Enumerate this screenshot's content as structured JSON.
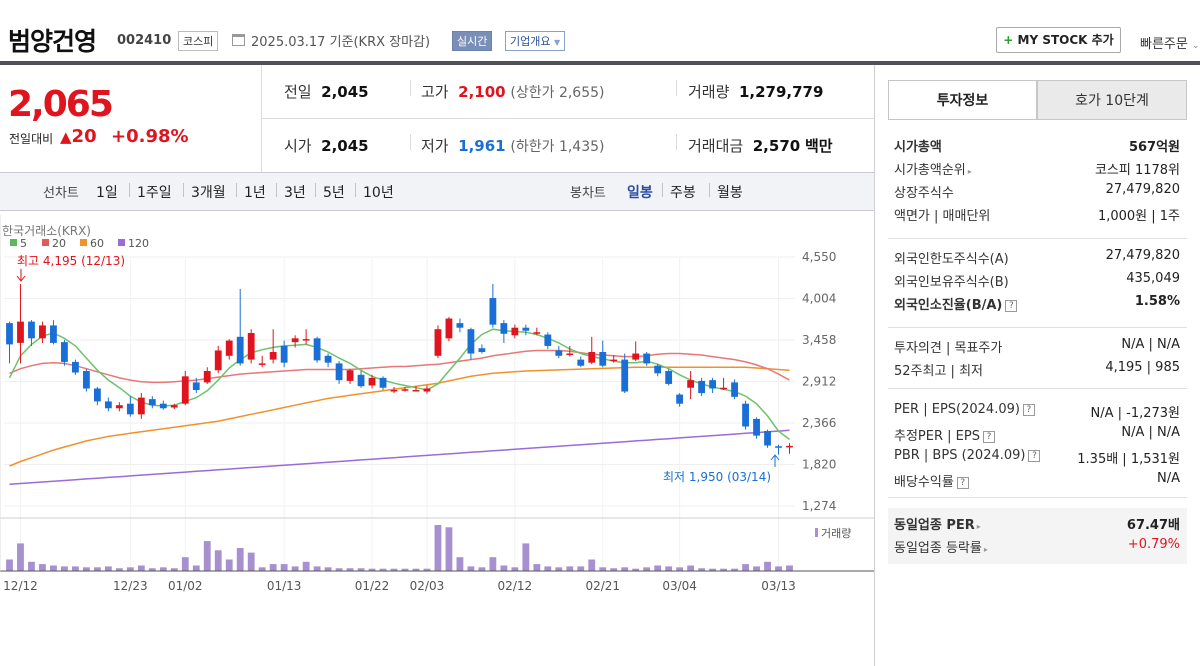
{
  "header": {
    "company": "범양건영",
    "code": "002410",
    "market": "코스피",
    "date": "2025.03.17 기준(KRX 장마감)",
    "realtime": "실시간",
    "corp_info": "기업개요",
    "mystock": "MY STOCK 추가",
    "quick_order": "빠른주문"
  },
  "quote": {
    "price": "2,065",
    "change_label": "전일대비",
    "change": "20",
    "change_pct": "+0.98%",
    "prev_label": "전일",
    "prev": "2,045",
    "open_label": "시가",
    "open": "2,045",
    "high_label": "고가",
    "high": "2,100",
    "upper_limit": "(상한가 2,655)",
    "low_label": "저가",
    "low": "1,961",
    "lower_limit": "(하한가 1,435)",
    "volume_label": "거래량",
    "volume": "1,279,779",
    "amount_label": "거래대금",
    "amount": "2,570",
    "amount_unit": "백만"
  },
  "periods": {
    "line_label": "선차트",
    "line_items": [
      "1일",
      "1주일",
      "3개월",
      "1년",
      "3년",
      "5년",
      "10년"
    ],
    "candle_label": "봉차트",
    "candle_items": [
      "일봉",
      "주봉",
      "월봉"
    ],
    "candle_selected": "일봉"
  },
  "chart_data": {
    "type": "candlestick",
    "source": "한국거래소(KRX)",
    "legend": [
      {
        "name": "5",
        "color": "#5cb85c"
      },
      {
        "name": "20",
        "color": "#e05a5a"
      },
      {
        "name": "60",
        "color": "#f0922b"
      },
      {
        "name": "120",
        "color": "#9b6bd6"
      }
    ],
    "y_ticks": [
      4550,
      4004,
      3458,
      2912,
      2366,
      1820,
      1274
    ],
    "ylim": [
      1274,
      4550
    ],
    "x_ticks": [
      "12/12",
      "12/23",
      "01/02",
      "01/13",
      "01/22",
      "02/03",
      "02/12",
      "02/21",
      "03/04",
      "03/13"
    ],
    "max_label": "최고 4,195 (12/13)",
    "min_label": "최저 1,950 (03/14)",
    "volume_label": "거래량",
    "candles": [
      [
        3680,
        3400,
        3700,
        3150
      ],
      [
        3420,
        3700,
        4195,
        3150
      ],
      [
        3700,
        3480,
        3720,
        3380
      ],
      [
        3480,
        3650,
        3700,
        3420
      ],
      [
        3650,
        3420,
        3720,
        3400
      ],
      [
        3430,
        3170,
        3460,
        3120
      ],
      [
        3170,
        3030,
        3200,
        3000
      ],
      [
        3050,
        2820,
        3080,
        2780
      ],
      [
        2820,
        2650,
        2840,
        2600
      ],
      [
        2650,
        2560,
        2700,
        2520
      ],
      [
        2560,
        2600,
        2640,
        2520
      ],
      [
        2620,
        2480,
        2720,
        2450
      ],
      [
        2480,
        2700,
        2760,
        2420
      ],
      [
        2680,
        2600,
        2720,
        2560
      ],
      [
        2620,
        2560,
        2660,
        2540
      ],
      [
        2570,
        2600,
        2620,
        2550
      ],
      [
        2620,
        2980,
        3050,
        2600
      ],
      [
        2900,
        2800,
        2960,
        2760
      ],
      [
        2900,
        3050,
        3100,
        2880
      ],
      [
        3060,
        3320,
        3380,
        3020
      ],
      [
        3250,
        3450,
        3470,
        3200
      ],
      [
        3500,
        3150,
        4130,
        3120
      ],
      [
        3200,
        3550,
        3600,
        3150
      ],
      [
        3150,
        3150,
        3250,
        3100
      ],
      [
        3200,
        3300,
        3600,
        3150
      ],
      [
        3380,
        3160,
        3450,
        3100
      ],
      [
        3430,
        3480,
        3520,
        3360
      ],
      [
        3470,
        3470,
        3600,
        3400
      ],
      [
        3480,
        3190,
        3500,
        3160
      ],
      [
        3250,
        3160,
        3280,
        3100
      ],
      [
        3150,
        2930,
        3180,
        2880
      ],
      [
        2920,
        3060,
        3080,
        2880
      ],
      [
        3000,
        2850,
        3050,
        2830
      ],
      [
        2860,
        2960,
        3000,
        2820
      ],
      [
        2960,
        2830,
        2980,
        2800
      ],
      [
        2800,
        2800,
        2840,
        2760
      ],
      [
        2800,
        2810,
        2840,
        2780
      ],
      [
        2800,
        2800,
        2850,
        2780
      ],
      [
        2780,
        2820,
        2860,
        2750
      ],
      [
        3250,
        3600,
        3650,
        3220
      ],
      [
        3480,
        3740,
        3760,
        3440
      ],
      [
        3680,
        3620,
        3740,
        3560
      ],
      [
        3600,
        3280,
        3620,
        3200
      ],
      [
        3350,
        3300,
        3400,
        3280
      ],
      [
        4010,
        3660,
        4195,
        3620
      ],
      [
        3680,
        3540,
        3720,
        3420
      ],
      [
        3520,
        3620,
        3660,
        3480
      ],
      [
        3620,
        3580,
        3660,
        3520
      ],
      [
        3560,
        3560,
        3620,
        3520
      ],
      [
        3530,
        3380,
        3560,
        3340
      ],
      [
        3320,
        3250,
        3380,
        3220
      ],
      [
        3280,
        3280,
        3380,
        3240
      ],
      [
        3200,
        3120,
        3240,
        3100
      ],
      [
        3160,
        3300,
        3500,
        3140
      ],
      [
        3300,
        3120,
        3450,
        3100
      ],
      [
        3200,
        3200,
        3260,
        3160
      ],
      [
        3200,
        2780,
        3280,
        2760
      ],
      [
        3200,
        3280,
        3440,
        3180
      ],
      [
        3280,
        3150,
        3300,
        3120
      ],
      [
        3120,
        3020,
        3140,
        2980
      ],
      [
        3050,
        2880,
        3070,
        2860
      ],
      [
        2740,
        2620,
        2760,
        2580
      ],
      [
        2830,
        2930,
        3050,
        2680
      ],
      [
        2920,
        2760,
        2960,
        2720
      ],
      [
        2930,
        2820,
        2960,
        2760
      ],
      [
        2820,
        2830,
        2960,
        2800
      ],
      [
        2900,
        2710,
        2940,
        2680
      ],
      [
        2620,
        2320,
        2660,
        2280
      ],
      [
        2420,
        2200,
        2440,
        2160
      ],
      [
        2260,
        2070,
        2280,
        2040
      ],
      [
        2060,
        2040,
        2080,
        1950
      ],
      [
        2045,
        2065,
        2100,
        1961
      ]
    ],
    "ma5": [
      2960,
      3250,
      3400,
      3510,
      3550,
      3480,
      3380,
      3220,
      3060,
      2930,
      2830,
      2720,
      2640,
      2600,
      2590,
      2600,
      2650,
      2700,
      2790,
      2930,
      3090,
      3200,
      3290,
      3330,
      3360,
      3380,
      3390,
      3400,
      3360,
      3300,
      3220,
      3150,
      3060,
      2980,
      2930,
      2890,
      2860,
      2830,
      2800,
      2880,
      3050,
      3220,
      3400,
      3530,
      3600,
      3580,
      3570,
      3560,
      3530,
      3480,
      3420,
      3340,
      3280,
      3240,
      3210,
      3180,
      3160,
      3160,
      3180,
      3140,
      3080,
      3000,
      2930,
      2880,
      2840,
      2810,
      2780,
      2720,
      2620,
      2460,
      2260,
      2150
    ],
    "ma20": [
      3020,
      3080,
      3120,
      3150,
      3160,
      3150,
      3120,
      3080,
      3040,
      3000,
      2960,
      2930,
      2910,
      2900,
      2900,
      2910,
      2920,
      2930,
      2950,
      2970,
      2990,
      3010,
      3020,
      3030,
      3040,
      3050,
      3060,
      3070,
      3070,
      3070,
      3070,
      3070,
      3080,
      3090,
      3100,
      3110,
      3110,
      3120,
      3130,
      3140,
      3160,
      3180,
      3200,
      3220,
      3250,
      3270,
      3290,
      3310,
      3320,
      3320,
      3320,
      3310,
      3290,
      3270,
      3260,
      3250,
      3240,
      3240,
      3250,
      3270,
      3280,
      3280,
      3270,
      3260,
      3240,
      3220,
      3200,
      3170,
      3130,
      3080,
      3010,
      2930
    ],
    "ma60": [
      1800,
      1860,
      1910,
      1960,
      2010,
      2050,
      2090,
      2130,
      2160,
      2190,
      2210,
      2230,
      2250,
      2270,
      2290,
      2310,
      2330,
      2350,
      2370,
      2390,
      2420,
      2450,
      2480,
      2510,
      2540,
      2570,
      2600,
      2630,
      2660,
      2690,
      2710,
      2730,
      2750,
      2770,
      2790,
      2810,
      2830,
      2850,
      2870,
      2890,
      2920,
      2950,
      2980,
      3000,
      3020,
      3030,
      3040,
      3050,
      3055,
      3060,
      3065,
      3070,
      3075,
      3080,
      3085,
      3090,
      3095,
      3100,
      3100,
      3100,
      3100,
      3100,
      3100,
      3100,
      3100,
      3100,
      3100,
      3100,
      3090,
      3080,
      3070,
      3060
    ],
    "ma120": [
      1560,
      1570,
      1580,
      1590,
      1600,
      1610,
      1620,
      1630,
      1640,
      1650,
      1660,
      1670,
      1680,
      1690,
      1700,
      1710,
      1720,
      1730,
      1740,
      1750,
      1760,
      1770,
      1780,
      1790,
      1800,
      1810,
      1820,
      1830,
      1840,
      1850,
      1860,
      1870,
      1880,
      1890,
      1900,
      1910,
      1920,
      1930,
      1940,
      1950,
      1960,
      1970,
      1980,
      1990,
      2000,
      2010,
      2020,
      2030,
      2040,
      2050,
      2060,
      2070,
      2080,
      2090,
      2100,
      2110,
      2120,
      2130,
      2140,
      2150,
      2160,
      2170,
      2180,
      2190,
      2200,
      2210,
      2220,
      2230,
      2240,
      2250,
      2260,
      2270
    ],
    "volumes": [
      0.25,
      0.6,
      0.2,
      0.15,
      0.12,
      0.1,
      0.1,
      0.08,
      0.08,
      0.1,
      0.06,
      0.08,
      0.12,
      0.06,
      0.08,
      0.06,
      0.3,
      0.12,
      0.65,
      0.45,
      0.25,
      0.5,
      0.4,
      0.08,
      0.15,
      0.15,
      0.1,
      0.2,
      0.1,
      0.08,
      0.06,
      0.06,
      0.06,
      0.05,
      0.05,
      0.05,
      0.05,
      0.05,
      0.05,
      1.0,
      0.95,
      0.3,
      0.1,
      0.08,
      0.3,
      0.12,
      0.08,
      0.6,
      0.15,
      0.1,
      0.08,
      0.1,
      0.1,
      0.25,
      0.08,
      0.06,
      0.08,
      0.05,
      0.08,
      0.12,
      0.1,
      0.08,
      0.12,
      0.06,
      0.05,
      0.05,
      0.05,
      0.15,
      0.1,
      0.2,
      0.1,
      0.12
    ]
  },
  "invest": {
    "tab_active": "투자정보",
    "tab_other": "호가 10단계",
    "rows1": [
      {
        "label": "시가총액",
        "value": "567억원",
        "bold": true
      },
      {
        "label": "시가총액순위",
        "value": "코스피 1178위",
        "arrow": true
      },
      {
        "label": "상장주식수",
        "value": "27,479,820"
      },
      {
        "label": "액면가 | 매매단위",
        "value": "1,000원 | 1주"
      }
    ],
    "rows2": [
      {
        "label": "외국인한도주식수(A)",
        "value": "27,479,820"
      },
      {
        "label": "외국인보유주식수(B)",
        "value": "435,049"
      },
      {
        "label": "외국인소진율(B/A)",
        "value": "1.58%",
        "bold": true,
        "help": true
      }
    ],
    "rows3": [
      {
        "label": "투자의견 | 목표주가",
        "value": "N/A | N/A"
      },
      {
        "label": "52주최고 | 최저",
        "value": "4,195 | 985"
      }
    ],
    "rows4": [
      {
        "label": "PER | EPS(2024.09)",
        "value": "N/A | -1,273원",
        "help": true
      },
      {
        "label": "추정PER | EPS",
        "value": "N/A | N/A",
        "help": true
      },
      {
        "label": "PBR | BPS (2024.09)",
        "value": "1.35배 | 1,531원",
        "help": true
      },
      {
        "label": "배당수익률",
        "value": "N/A",
        "help": true
      }
    ],
    "peer": [
      {
        "label": "동일업종 PER",
        "value": "67.47배",
        "bold": true
      },
      {
        "label": "동일업종 등락률",
        "value": "+0.79%",
        "red": true
      }
    ]
  },
  "colors": {
    "up": "#e0141e",
    "down": "#1a6fd6",
    "accent": "#2a4ea0"
  }
}
